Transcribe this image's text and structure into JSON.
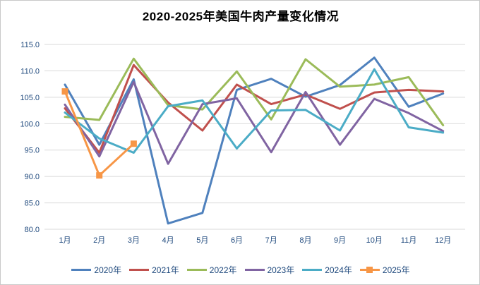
{
  "window": {
    "background_color": "#FFFFFF",
    "border_color": "#C9C9C9"
  },
  "chart_data": {
    "type": "line",
    "title": "2020-2025年美国牛肉产量变化情况",
    "xlabel": "",
    "ylabel": "",
    "categories": [
      "1月",
      "2月",
      "3月",
      "4月",
      "5月",
      "6月",
      "7月",
      "8月",
      "9月",
      "10月",
      "11月",
      "12月"
    ],
    "y_axis": {
      "min": 80.0,
      "max": 115.0,
      "step": 5.0,
      "tick_labels": [
        "115.0",
        "110.0",
        "105.0",
        "100.0",
        "95.0",
        "90.0",
        "85.0",
        "80.0"
      ]
    },
    "grid": "horizontal-only",
    "gridline_color": "#D9D9D9",
    "text_color": "#1F497D",
    "title_color": "#000000",
    "legend_position": "bottom",
    "series": [
      {
        "name": "2020年",
        "color": "#4F81BD",
        "marker": "none",
        "values": [
          107.4,
          96.0,
          108.4,
          81.1,
          83.1,
          106.4,
          108.5,
          105.1,
          107.3,
          112.5,
          103.2,
          105.7
        ]
      },
      {
        "name": "2021年",
        "color": "#C0504D",
        "marker": "none",
        "values": [
          102.9,
          94.5,
          111.1,
          104.0,
          98.7,
          107.4,
          103.7,
          105.5,
          102.8,
          105.9,
          106.4,
          106.1
        ]
      },
      {
        "name": "2022年",
        "color": "#9BBB59",
        "marker": "none",
        "values": [
          101.3,
          100.7,
          112.3,
          103.5,
          102.7,
          109.9,
          100.8,
          112.2,
          107.0,
          107.4,
          108.8,
          99.7
        ]
      },
      {
        "name": "2023年",
        "color": "#8064A2",
        "marker": "none",
        "values": [
          103.6,
          93.8,
          107.9,
          92.4,
          103.7,
          104.8,
          94.6,
          106.0,
          96.0,
          104.7,
          102.0,
          98.6
        ]
      },
      {
        "name": "2024年",
        "color": "#4BACC6",
        "marker": "none",
        "values": [
          102.1,
          97.2,
          94.5,
          103.3,
          104.4,
          95.3,
          102.5,
          102.6,
          98.7,
          110.3,
          99.3,
          98.3
        ]
      },
      {
        "name": "2025年",
        "color": "#F79646",
        "marker": "square",
        "values": [
          106.1,
          90.2,
          96.2
        ]
      }
    ]
  }
}
